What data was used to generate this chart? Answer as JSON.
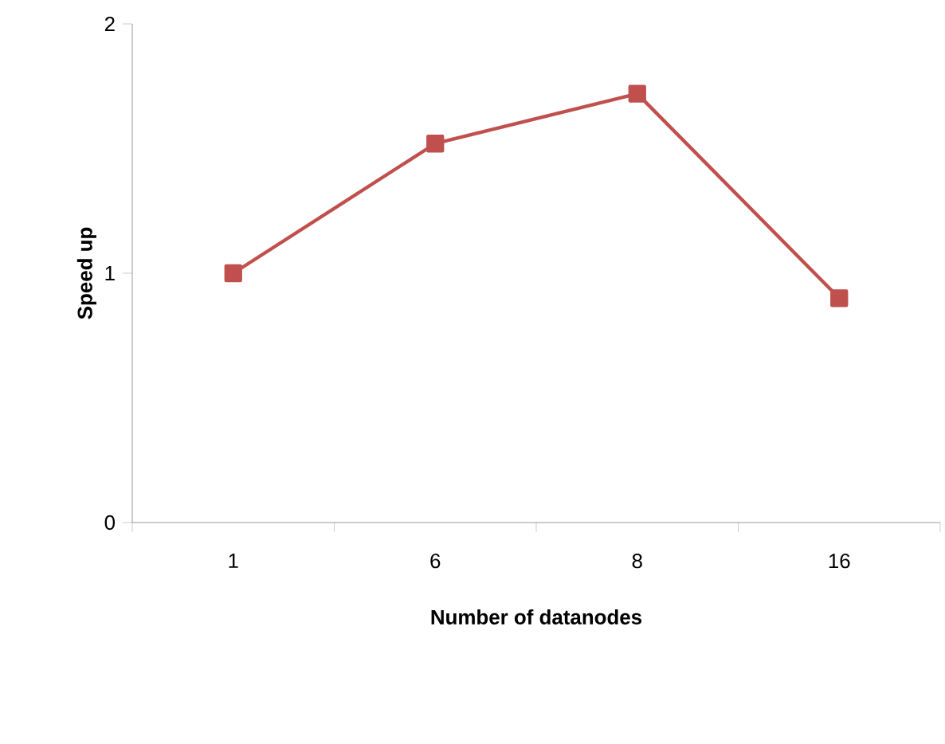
{
  "chart_data": {
    "type": "line",
    "xlabel": "Number of datanodes",
    "ylabel": "Speed up",
    "categories": [
      "1",
      "6",
      "8",
      "16"
    ],
    "series": [
      {
        "color": "#c0504d",
        "values": [
          1.0,
          1.52,
          1.72,
          0.9
        ]
      }
    ],
    "ylim": [
      0,
      2
    ],
    "yticks": [
      0,
      1,
      2
    ],
    "grid": false,
    "marker": "square",
    "line_style": "solid"
  }
}
